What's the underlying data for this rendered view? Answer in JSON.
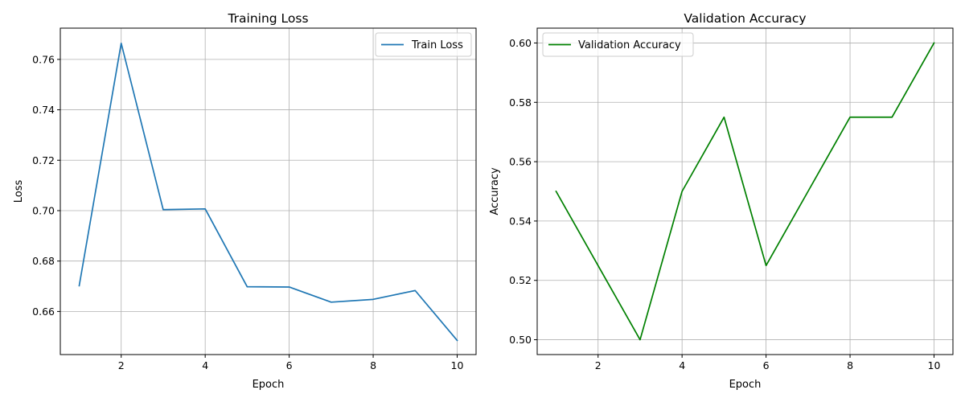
{
  "chart_data": [
    {
      "type": "line",
      "title": "Training Loss",
      "xlabel": "Epoch",
      "ylabel": "Loss",
      "xlim": [
        0.55,
        10.45
      ],
      "ylim": [
        0.6429,
        0.7724
      ],
      "xticks": [
        2,
        4,
        6,
        8,
        10
      ],
      "yticks": [
        0.66,
        0.68,
        0.7,
        0.72,
        0.74,
        0.76
      ],
      "ytick_labels": [
        "0.66",
        "0.68",
        "0.70",
        "0.72",
        "0.74",
        "0.76"
      ],
      "grid": true,
      "legend": "upper right",
      "series": [
        {
          "name": "Train Loss",
          "color": "#1f77b4",
          "x": [
            1,
            2,
            3,
            4,
            5,
            6,
            7,
            8,
            9,
            10
          ],
          "y": [
            0.6702,
            0.7664,
            0.7004,
            0.7007,
            0.6698,
            0.6697,
            0.6637,
            0.6648,
            0.6683,
            0.6485
          ]
        }
      ]
    },
    {
      "type": "line",
      "title": "Validation Accuracy",
      "xlabel": "Epoch",
      "ylabel": "Accuracy",
      "xlim": [
        0.55,
        10.45
      ],
      "ylim": [
        0.495,
        0.605
      ],
      "xticks": [
        2,
        4,
        6,
        8,
        10
      ],
      "yticks": [
        0.5,
        0.52,
        0.54,
        0.56,
        0.58,
        0.6
      ],
      "ytick_labels": [
        "0.50",
        "0.52",
        "0.54",
        "0.56",
        "0.58",
        "0.60"
      ],
      "grid": true,
      "legend": "upper left",
      "series": [
        {
          "name": "Validation Accuracy",
          "color": "#008000",
          "x": [
            1,
            2,
            3,
            4,
            5,
            6,
            7,
            8,
            9,
            10
          ],
          "y": [
            0.55,
            0.525,
            0.5,
            0.55,
            0.575,
            0.525,
            0.55,
            0.575,
            0.575,
            0.6
          ]
        }
      ]
    }
  ]
}
